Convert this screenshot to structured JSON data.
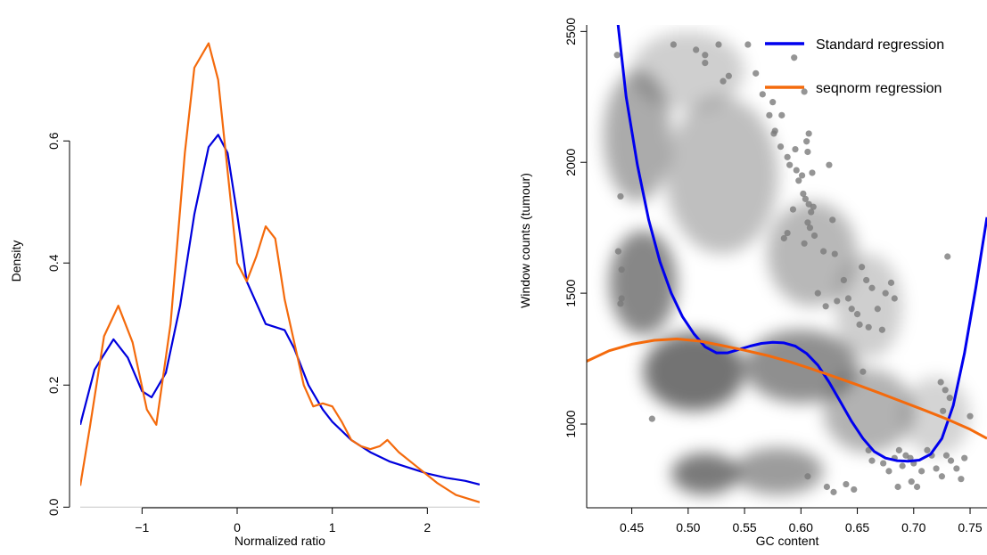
{
  "chart_data": [
    {
      "type": "line",
      "xlabel": "Normalized ratio",
      "ylabel": "Density",
      "xlim": [
        -1.65,
        2.55
      ],
      "ylim": [
        -0.02,
        0.79
      ],
      "xticks": [
        -1,
        0,
        1,
        2
      ],
      "xtick_labels": [
        "−1",
        "0",
        "1",
        "2"
      ],
      "yticks": [
        0.0,
        0.2,
        0.4,
        0.6
      ],
      "ytick_labels": [
        "0.0",
        "0.2",
        "0.4",
        "0.6"
      ],
      "baseline": 0,
      "colors": {
        "blue": "#0000dd",
        "orange": "#f46a0c"
      },
      "series": [
        {
          "color": "#0000dd",
          "x": [
            -1.65,
            -1.5,
            -1.3,
            -1.15,
            -1.0,
            -0.9,
            -0.75,
            -0.6,
            -0.45,
            -0.3,
            -0.2,
            -0.1,
            0.0,
            0.1,
            0.3,
            0.5,
            0.6,
            0.75,
            0.9,
            1.0,
            1.2,
            1.4,
            1.6,
            1.8,
            2.0,
            2.2,
            2.4,
            2.55
          ],
          "y": [
            0.135,
            0.225,
            0.275,
            0.245,
            0.19,
            0.18,
            0.22,
            0.33,
            0.48,
            0.59,
            0.61,
            0.58,
            0.48,
            0.37,
            0.3,
            0.29,
            0.26,
            0.2,
            0.16,
            0.14,
            0.11,
            0.09,
            0.075,
            0.065,
            0.055,
            0.048,
            0.043,
            0.037
          ]
        },
        {
          "color": "#f46a0c",
          "x": [
            -1.65,
            -1.55,
            -1.4,
            -1.25,
            -1.1,
            -0.95,
            -0.85,
            -0.7,
            -0.55,
            -0.45,
            -0.3,
            -0.2,
            -0.1,
            0.0,
            0.1,
            0.2,
            0.3,
            0.4,
            0.5,
            0.6,
            0.7,
            0.8,
            0.9,
            1.0,
            1.1,
            1.2,
            1.3,
            1.4,
            1.5,
            1.58,
            1.7,
            1.9,
            2.1,
            2.3,
            2.55
          ],
          "y": [
            0.035,
            0.13,
            0.28,
            0.33,
            0.27,
            0.16,
            0.135,
            0.3,
            0.58,
            0.72,
            0.76,
            0.7,
            0.55,
            0.4,
            0.37,
            0.41,
            0.46,
            0.44,
            0.34,
            0.27,
            0.2,
            0.165,
            0.17,
            0.165,
            0.14,
            0.11,
            0.1,
            0.095,
            0.1,
            0.11,
            0.09,
            0.065,
            0.04,
            0.02,
            0.008
          ]
        }
      ]
    },
    {
      "type": "scatter",
      "xlabel": "GC content",
      "ylabel": "Window counts (tumour)",
      "xlim": [
        0.41,
        0.765
      ],
      "ylim": [
        680,
        2525
      ],
      "xticks": [
        0.45,
        0.5,
        0.55,
        0.6,
        0.65,
        0.7,
        0.75
      ],
      "xtick_labels": [
        "0.45",
        "0.50",
        "0.55",
        "0.60",
        "0.65",
        "0.70",
        "0.75"
      ],
      "yticks": [
        1000,
        1500,
        2000,
        2500
      ],
      "ytick_labels": [
        "1000",
        "1500",
        "2000",
        "2500"
      ],
      "legend": {
        "position": "top-right",
        "entries": [
          {
            "label": "Standard regression",
            "color": "#0000ee"
          },
          {
            "label": "seqnorm regression",
            "color": "#f46a0c"
          }
        ]
      },
      "density_blobs": [
        {
          "x": 0.505,
          "y": 1200,
          "sx": 0.045,
          "sy": 150,
          "w": 1.0
        },
        {
          "x": 0.515,
          "y": 810,
          "sx": 0.03,
          "sy": 80,
          "w": 0.95
        },
        {
          "x": 0.46,
          "y": 1540,
          "sx": 0.03,
          "sy": 200,
          "w": 0.85
        },
        {
          "x": 0.6,
          "y": 1220,
          "sx": 0.05,
          "sy": 140,
          "w": 0.8
        },
        {
          "x": 0.58,
          "y": 820,
          "sx": 0.04,
          "sy": 90,
          "w": 0.7
        },
        {
          "x": 0.455,
          "y": 2100,
          "sx": 0.03,
          "sy": 250,
          "w": 0.6
        },
        {
          "x": 0.53,
          "y": 1950,
          "sx": 0.05,
          "sy": 300,
          "w": 0.45
        },
        {
          "x": 0.61,
          "y": 1650,
          "sx": 0.04,
          "sy": 200,
          "w": 0.5
        },
        {
          "x": 0.66,
          "y": 1050,
          "sx": 0.04,
          "sy": 160,
          "w": 0.55
        },
        {
          "x": 0.66,
          "y": 1450,
          "sx": 0.03,
          "sy": 200,
          "w": 0.35
        },
        {
          "x": 0.72,
          "y": 1030,
          "sx": 0.03,
          "sy": 150,
          "w": 0.3
        },
        {
          "x": 0.5,
          "y": 2350,
          "sx": 0.05,
          "sy": 150,
          "w": 0.35
        }
      ],
      "points": [
        [
          0.437,
          2410
        ],
        [
          0.44,
          1870
        ],
        [
          0.438,
          1660
        ],
        [
          0.441,
          1590
        ],
        [
          0.44,
          1460
        ],
        [
          0.441,
          1480
        ],
        [
          0.468,
          1020
        ],
        [
          0.487,
          2450
        ],
        [
          0.507,
          2430
        ],
        [
          0.515,
          2410
        ],
        [
          0.515,
          2380
        ],
        [
          0.531,
          2310
        ],
        [
          0.527,
          2450
        ],
        [
          0.536,
          2330
        ],
        [
          0.553,
          2450
        ],
        [
          0.56,
          2340
        ],
        [
          0.566,
          2260
        ],
        [
          0.572,
          2180
        ],
        [
          0.575,
          2230
        ],
        [
          0.576,
          2110
        ],
        [
          0.577,
          2120
        ],
        [
          0.583,
          2180
        ],
        [
          0.582,
          2060
        ],
        [
          0.588,
          2020
        ],
        [
          0.59,
          1990
        ],
        [
          0.595,
          2050
        ],
        [
          0.596,
          1970
        ],
        [
          0.598,
          1930
        ],
        [
          0.601,
          1950
        ],
        [
          0.605,
          2080
        ],
        [
          0.606,
          2040
        ],
        [
          0.607,
          2110
        ],
        [
          0.602,
          1880
        ],
        [
          0.604,
          1860
        ],
        [
          0.607,
          1840
        ],
        [
          0.609,
          1810
        ],
        [
          0.611,
          1830
        ],
        [
          0.61,
          1960
        ],
        [
          0.606,
          1770
        ],
        [
          0.608,
          1750
        ],
        [
          0.612,
          1720
        ],
        [
          0.603,
          1690
        ],
        [
          0.593,
          1820
        ],
        [
          0.588,
          1730
        ],
        [
          0.585,
          1710
        ],
        [
          0.594,
          2400
        ],
        [
          0.603,
          2270
        ],
        [
          0.62,
          1660
        ],
        [
          0.625,
          1990
        ],
        [
          0.628,
          1780
        ],
        [
          0.63,
          1650
        ],
        [
          0.615,
          1500
        ],
        [
          0.622,
          1450
        ],
        [
          0.632,
          1470
        ],
        [
          0.638,
          1550
        ],
        [
          0.642,
          1480
        ],
        [
          0.645,
          1440
        ],
        [
          0.65,
          1420
        ],
        [
          0.652,
          1380
        ],
        [
          0.654,
          1600
        ],
        [
          0.658,
          1550
        ],
        [
          0.66,
          1370
        ],
        [
          0.663,
          1520
        ],
        [
          0.668,
          1440
        ],
        [
          0.672,
          1360
        ],
        [
          0.675,
          1500
        ],
        [
          0.68,
          1540
        ],
        [
          0.683,
          1480
        ],
        [
          0.655,
          1200
        ],
        [
          0.66,
          900
        ],
        [
          0.663,
          860
        ],
        [
          0.673,
          850
        ],
        [
          0.678,
          820
        ],
        [
          0.683,
          870
        ],
        [
          0.687,
          900
        ],
        [
          0.69,
          840
        ],
        [
          0.693,
          880
        ],
        [
          0.697,
          870
        ],
        [
          0.7,
          850
        ],
        [
          0.703,
          760
        ],
        [
          0.707,
          820
        ],
        [
          0.712,
          900
        ],
        [
          0.716,
          880
        ],
        [
          0.72,
          830
        ],
        [
          0.725,
          800
        ],
        [
          0.729,
          880
        ],
        [
          0.733,
          860
        ],
        [
          0.738,
          830
        ],
        [
          0.742,
          790
        ],
        [
          0.745,
          870
        ],
        [
          0.75,
          1030
        ],
        [
          0.732,
          1100
        ],
        [
          0.726,
          1050
        ],
        [
          0.724,
          1160
        ],
        [
          0.728,
          1130
        ],
        [
          0.73,
          1640
        ],
        [
          0.686,
          760
        ],
        [
          0.698,
          780
        ],
        [
          0.629,
          740
        ],
        [
          0.623,
          760
        ],
        [
          0.606,
          800
        ],
        [
          0.64,
          770
        ],
        [
          0.647,
          750
        ]
      ],
      "series": [
        {
          "name": "Standard regression",
          "color": "#0000ee",
          "x": [
            0.437,
            0.445,
            0.455,
            0.465,
            0.475,
            0.485,
            0.495,
            0.505,
            0.515,
            0.525,
            0.535,
            0.545,
            0.555,
            0.565,
            0.575,
            0.585,
            0.595,
            0.605,
            0.615,
            0.625,
            0.635,
            0.645,
            0.655,
            0.665,
            0.675,
            0.685,
            0.695,
            0.705,
            0.715,
            0.725,
            0.735,
            0.745,
            0.755,
            0.765
          ],
          "y": [
            2560,
            2250,
            1990,
            1780,
            1620,
            1500,
            1410,
            1345,
            1295,
            1272,
            1272,
            1285,
            1298,
            1308,
            1312,
            1310,
            1298,
            1270,
            1225,
            1160,
            1085,
            1010,
            945,
            895,
            870,
            860,
            858,
            862,
            885,
            945,
            1070,
            1270,
            1520,
            1790
          ]
        },
        {
          "name": "seqnorm regression",
          "color": "#f46a0c",
          "x": [
            0.41,
            0.43,
            0.45,
            0.47,
            0.49,
            0.51,
            0.53,
            0.55,
            0.57,
            0.59,
            0.61,
            0.63,
            0.65,
            0.67,
            0.69,
            0.71,
            0.73,
            0.75,
            0.765
          ],
          "y": [
            1240,
            1280,
            1305,
            1320,
            1325,
            1317,
            1300,
            1282,
            1262,
            1238,
            1210,
            1180,
            1150,
            1118,
            1085,
            1052,
            1018,
            980,
            945
          ]
        }
      ]
    }
  ]
}
